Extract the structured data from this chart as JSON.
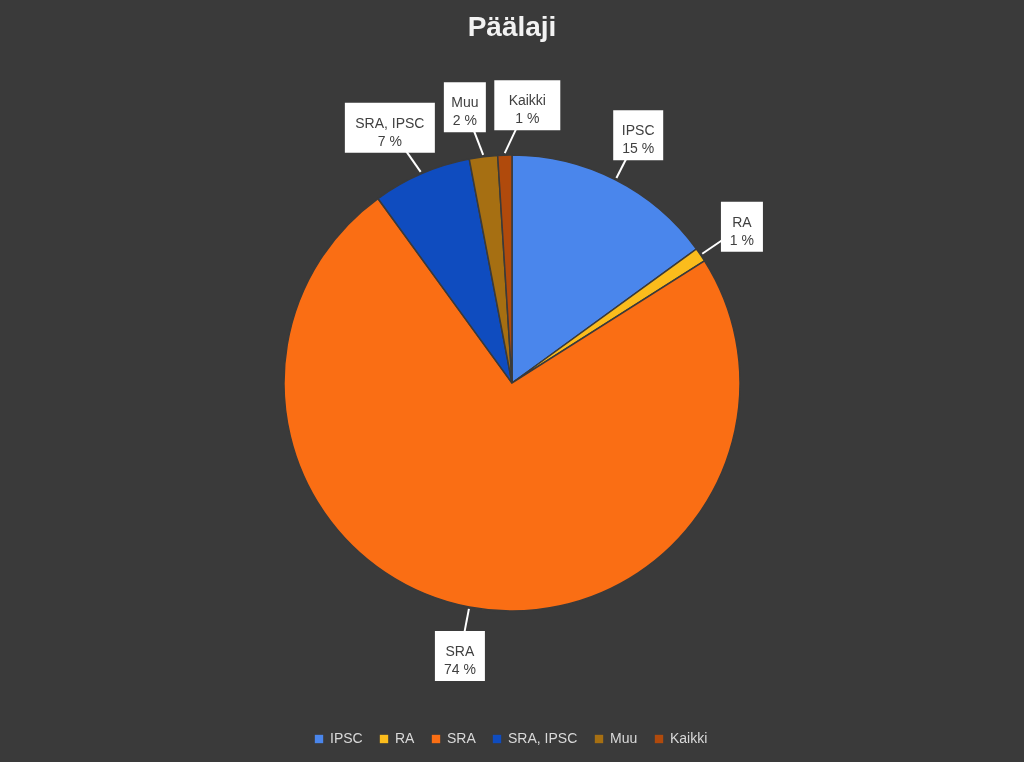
{
  "chart_data": {
    "type": "pie",
    "title": "Päälaji",
    "categories": [
      "IPSC",
      "RA",
      "SRA",
      "SRA, IPSC",
      "Muu",
      "Kaikki"
    ],
    "values": [
      15,
      1,
      74,
      7,
      2,
      1
    ],
    "value_labels": [
      "15 %",
      "1 %",
      "74 %",
      "7 %",
      "2 %",
      "1 %"
    ],
    "colors": [
      "#4a86ec",
      "#fbbc1c",
      "#fa6e14",
      "#0f4cbf",
      "#a66f12",
      "#b04a0c"
    ],
    "legend": "bottom"
  }
}
